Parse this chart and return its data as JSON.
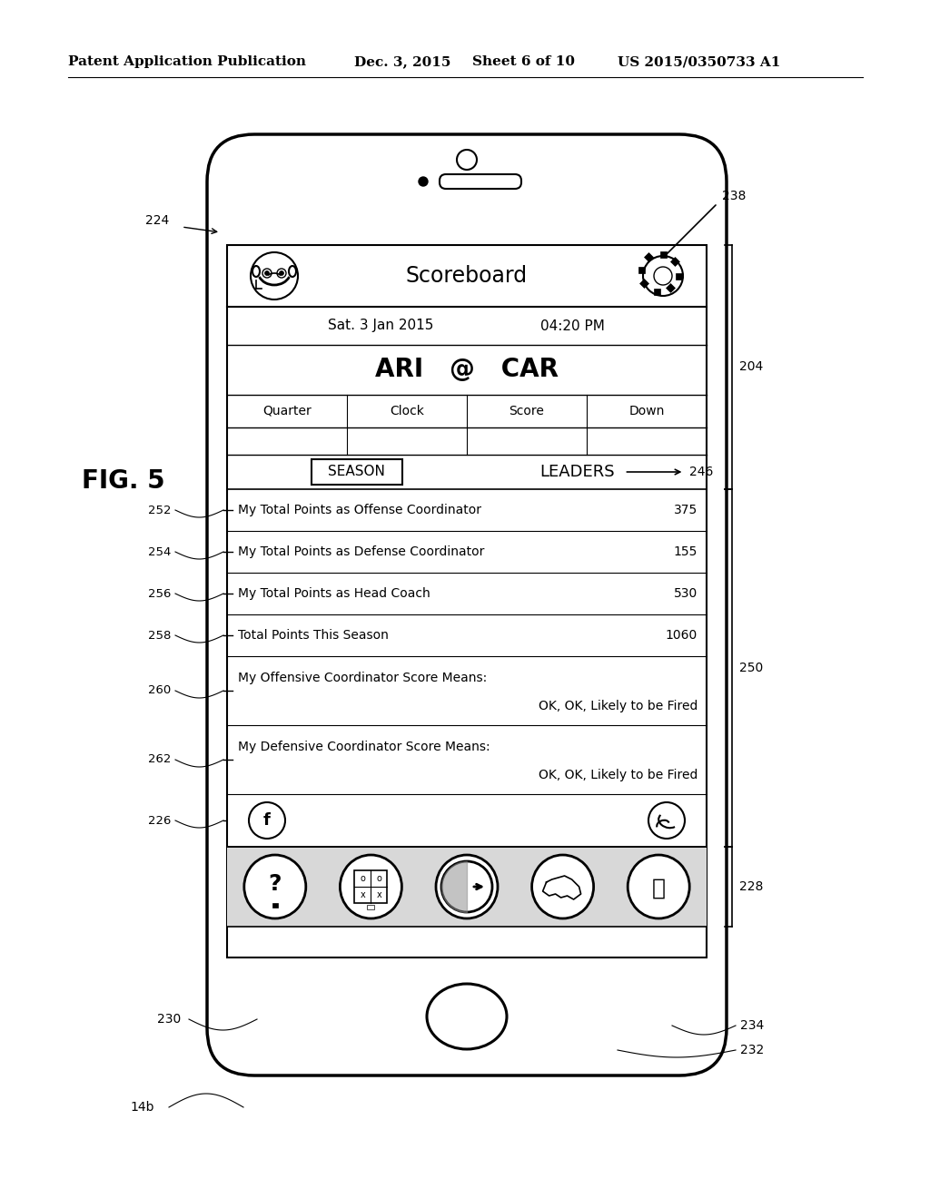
{
  "bg_color": "#ffffff",
  "header_text1": "Patent Application Publication",
  "header_text2": "Dec. 3, 2015",
  "header_text3": "Sheet 6 of 10",
  "header_text4": "US 2015/0350733 A1",
  "fig_label": "FIG. 5",
  "title": "Scoreboard",
  "date": "Sat. 3 Jan 2015",
  "time": "04:20 PM",
  "teams": "ARI   @   CAR",
  "table_headers": [
    "Quarter",
    "Clock",
    "Score",
    "Down"
  ],
  "season_label": "SEASON",
  "leaders_label": "LEADERS",
  "rows": [
    {
      "label": "My Total Points as Offense Coordinator",
      "value": "375",
      "ref": "252"
    },
    {
      "label": "My Total Points as Defense Coordinator",
      "value": "155",
      "ref": "254"
    },
    {
      "label": "My Total Points as Head Coach",
      "value": "530",
      "ref": "256"
    },
    {
      "label": "Total Points This Season",
      "value": "1060",
      "ref": "258"
    },
    {
      "label": "My Offensive Coordinator Score Means:",
      "value": "",
      "sub": "OK, OK, Likely to be Fired",
      "ref": "260"
    },
    {
      "label": "My Defensive Coordinator Score Means:",
      "value": "",
      "sub": "OK, OK, Likely to be Fired",
      "ref": "262"
    }
  ]
}
